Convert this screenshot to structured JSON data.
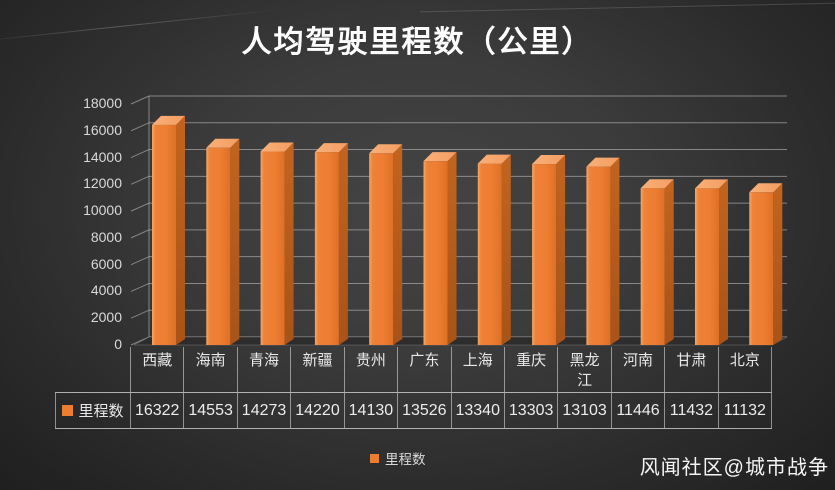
{
  "title": "人均驾驶里程数（公里）",
  "watermark": "风闻社区@城市战争",
  "legend": {
    "label": "里程数",
    "marker_color": "#ED7D31"
  },
  "table": {
    "row_header": "里程数"
  },
  "colors": {
    "bar_front": "#ED7D31",
    "bar_front_highlight": "#F7A765",
    "bar_side": "#A85318",
    "bar_top": "#F49D62",
    "gridline": "#C8C8C8",
    "floor": "#2D2D2D",
    "background_center": "#444444",
    "background_edge": "#1F1F1F",
    "axis_text": "#D9D9D9",
    "title_text": "#FFFFFF",
    "table_border": "#E8E8E8"
  },
  "chart_data": {
    "type": "bar",
    "variant": "3d-column",
    "title": "人均驾驶里程数（公里）",
    "categories": [
      "西藏",
      "海南",
      "青海",
      "新疆",
      "贵州",
      "广东",
      "上海",
      "重庆",
      "黑龙江",
      "河南",
      "甘肃",
      "北京"
    ],
    "series": [
      {
        "name": "里程数",
        "values": [
          16322,
          14553,
          14273,
          14220,
          14130,
          13526,
          13340,
          13303,
          13103,
          11446,
          11432,
          11132
        ]
      }
    ],
    "xlabel": "",
    "ylabel": "",
    "ylim": [
      0,
      18000
    ],
    "ytick_interval": 2000,
    "yticks": [
      0,
      2000,
      4000,
      6000,
      8000,
      10000,
      12000,
      14000,
      16000,
      18000
    ],
    "grid": true,
    "legend_position": "bottom",
    "data_table_shown": true,
    "bar_color": "#ED7D31"
  }
}
